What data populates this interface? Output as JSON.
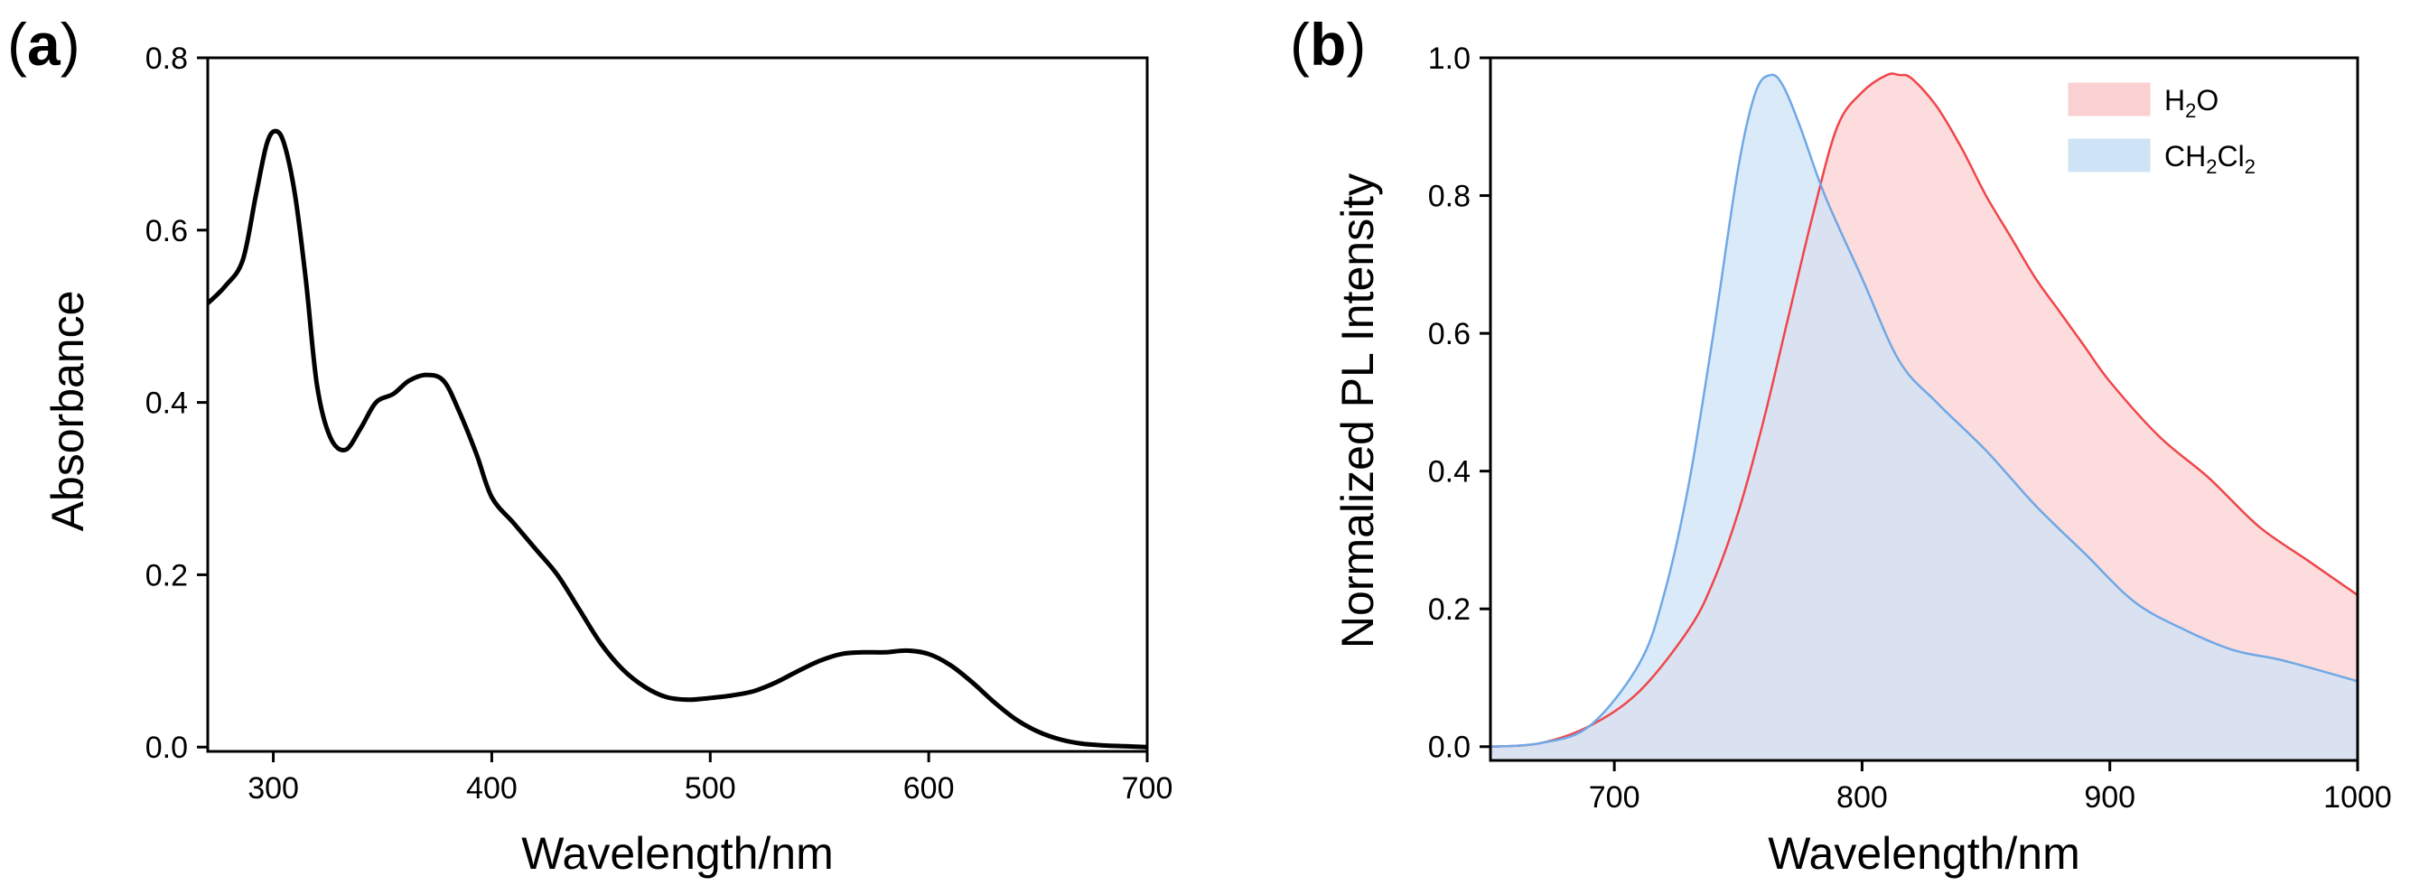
{
  "chart_data": [
    {
      "panel": "(a)",
      "panel_letter": "a",
      "type": "line",
      "xlabel": "Wavelength/nm",
      "ylabel": "Absorbance",
      "xlim": [
        270,
        700
      ],
      "ylim": [
        -0.005,
        0.8
      ],
      "xticks": [
        300,
        400,
        500,
        600,
        700
      ],
      "yticks": [
        0.0,
        0.2,
        0.4,
        0.6,
        0.8
      ],
      "ytick_labels": [
        "0.0",
        "0.2",
        "0.4",
        "0.6",
        "0.8"
      ],
      "grid": false,
      "series": [
        {
          "name": "Absorbance",
          "color": "#000000",
          "x": [
            270,
            278,
            286,
            292,
            297,
            301,
            305,
            310,
            315,
            320,
            326,
            333,
            340,
            347,
            355,
            362,
            370,
            378,
            385,
            393,
            400,
            410,
            420,
            430,
            440,
            450,
            460,
            470,
            480,
            490,
            500,
            510,
            520,
            530,
            540,
            550,
            560,
            570,
            580,
            590,
            600,
            610,
            620,
            630,
            640,
            650,
            660,
            670,
            680,
            690,
            700
          ],
          "y": [
            0.515,
            0.535,
            0.565,
            0.64,
            0.7,
            0.715,
            0.7,
            0.64,
            0.54,
            0.42,
            0.36,
            0.345,
            0.37,
            0.4,
            0.41,
            0.425,
            0.432,
            0.425,
            0.39,
            0.34,
            0.29,
            0.26,
            0.23,
            0.2,
            0.16,
            0.12,
            0.09,
            0.07,
            0.058,
            0.055,
            0.057,
            0.06,
            0.065,
            0.075,
            0.088,
            0.1,
            0.108,
            0.11,
            0.11,
            0.112,
            0.108,
            0.095,
            0.075,
            0.052,
            0.032,
            0.018,
            0.009,
            0.004,
            0.002,
            0.001,
            0.0
          ]
        }
      ]
    },
    {
      "panel": "(b)",
      "panel_letter": "b",
      "type": "area",
      "xlabel": "Wavelength/nm",
      "ylabel": "Normalized PL Intensity",
      "xlim": [
        650,
        1000
      ],
      "ylim": [
        -0.02,
        1.0
      ],
      "xticks": [
        700,
        800,
        900,
        1000
      ],
      "yticks": [
        0.0,
        0.2,
        0.4,
        0.6,
        0.8,
        1.0
      ],
      "ytick_labels": [
        "0.0",
        "0.2",
        "0.4",
        "0.6",
        "0.8",
        "1.0"
      ],
      "grid": false,
      "legend_position": "top-right",
      "series": [
        {
          "name": "H2O",
          "legend_main": "H",
          "legend_sub": "2",
          "legend_tail": "O",
          "line_color": "#f0454a",
          "fill_color": "#fbd0d2",
          "x": [
            650,
            670,
            690,
            710,
            730,
            740,
            750,
            760,
            770,
            780,
            790,
            800,
            810,
            815,
            820,
            830,
            840,
            850,
            860,
            870,
            880,
            890,
            900,
            920,
            940,
            960,
            980,
            1000
          ],
          "y": [
            0.0,
            0.005,
            0.03,
            0.08,
            0.17,
            0.24,
            0.34,
            0.47,
            0.62,
            0.77,
            0.9,
            0.95,
            0.975,
            0.975,
            0.97,
            0.93,
            0.87,
            0.8,
            0.74,
            0.68,
            0.63,
            0.58,
            0.53,
            0.45,
            0.39,
            0.32,
            0.27,
            0.22
          ]
        },
        {
          "name": "CH2Cl2",
          "legend_main": "CH",
          "legend_sub": "2",
          "legend_tail": "Cl",
          "legend_sub2": "2",
          "line_color": "#6fa8e6",
          "fill_color": "#cfe3f6",
          "x": [
            650,
            670,
            690,
            710,
            720,
            730,
            740,
            750,
            757,
            763,
            768,
            775,
            785,
            800,
            815,
            830,
            850,
            870,
            890,
            910,
            930,
            950,
            970,
            1000
          ],
          "y": [
            0.0,
            0.005,
            0.03,
            0.12,
            0.22,
            0.38,
            0.6,
            0.84,
            0.95,
            0.975,
            0.96,
            0.9,
            0.8,
            0.68,
            0.56,
            0.5,
            0.43,
            0.35,
            0.28,
            0.21,
            0.17,
            0.14,
            0.125,
            0.095
          ]
        }
      ]
    }
  ]
}
